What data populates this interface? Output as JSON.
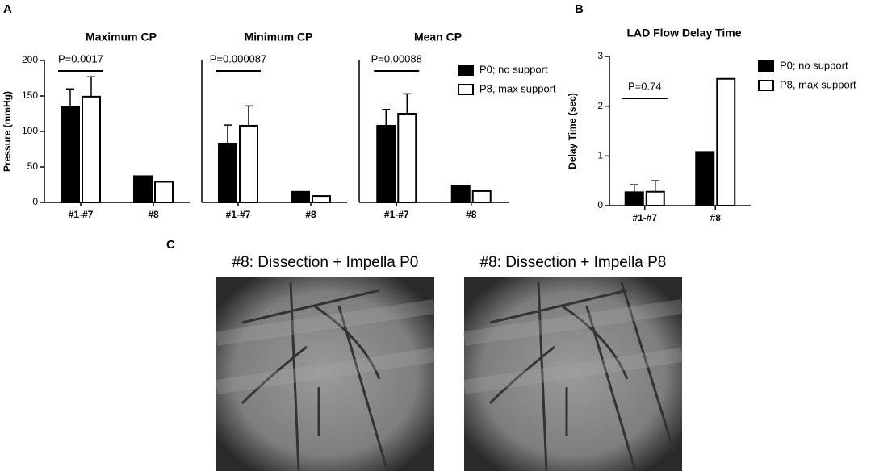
{
  "panels": {
    "a": "A",
    "b": "B",
    "c": "C"
  },
  "images": [
    {
      "title": "#8: Dissection + Impella P0"
    },
    {
      "title": "#8: Dissection + Impella P8"
    }
  ],
  "chart_data": [
    {
      "type": "bar",
      "title": "Maximum CP",
      "ylabel": "Pressure (mmHg)",
      "categories": [
        "#1-#7",
        "#8"
      ],
      "series": [
        {
          "name": "P0; no support",
          "color": "#000000",
          "values": [
            135,
            37
          ],
          "errors": [
            25,
            null
          ]
        },
        {
          "name": "P8, max support",
          "color": "#ffffff",
          "values": [
            149,
            29
          ],
          "errors": [
            28,
            null
          ]
        }
      ],
      "ylim": [
        0,
        200
      ],
      "yticks": [
        0,
        50,
        100,
        150,
        200
      ],
      "annotation": "P=0.0017"
    },
    {
      "type": "bar",
      "title": "Minimum CP",
      "categories": [
        "#1-#7",
        "#8"
      ],
      "series": [
        {
          "name": "P0; no support",
          "color": "#000000",
          "values": [
            83,
            15
          ],
          "errors": [
            26,
            null
          ]
        },
        {
          "name": "P8, max support",
          "color": "#ffffff",
          "values": [
            108,
            9
          ],
          "errors": [
            28,
            null
          ]
        }
      ],
      "ylim": [
        0,
        200
      ],
      "annotation": "P=0.000087"
    },
    {
      "type": "bar",
      "title": "Mean CP",
      "categories": [
        "#1-#7",
        "#8"
      ],
      "series": [
        {
          "name": "P0; no support",
          "color": "#000000",
          "values": [
            108,
            23
          ],
          "errors": [
            23,
            null
          ]
        },
        {
          "name": "P8, max support",
          "color": "#ffffff",
          "values": [
            125,
            16
          ],
          "errors": [
            28,
            null
          ]
        }
      ],
      "ylim": [
        0,
        200
      ],
      "annotation": "P=0.00088",
      "legend": "right"
    },
    {
      "type": "bar",
      "title": "LAD Flow Delay Time",
      "ylabel": "Delay Time (sec)",
      "categories": [
        "#1-#7",
        "#8"
      ],
      "series": [
        {
          "name": "P0; no support",
          "color": "#000000",
          "values": [
            0.27,
            1.08
          ],
          "errors": [
            0.15,
            null
          ]
        },
        {
          "name": "P8, max support",
          "color": "#ffffff",
          "values": [
            0.28,
            2.55
          ],
          "errors": [
            0.22,
            null
          ]
        }
      ],
      "ylim": [
        0,
        3
      ],
      "yticks": [
        0,
        1,
        2,
        3
      ],
      "annotation": "P=0.74",
      "legend": "right"
    }
  ]
}
